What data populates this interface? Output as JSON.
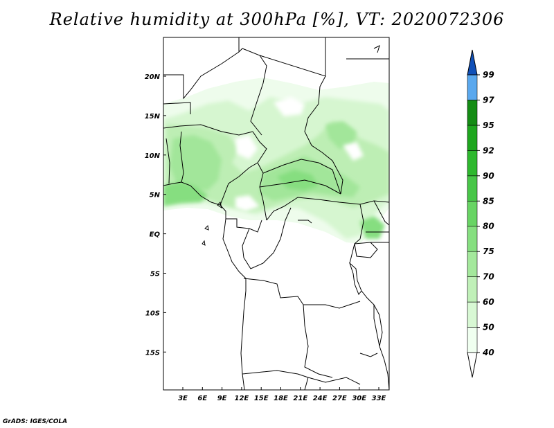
{
  "title": "Relative humidity at 300hPa [%], VT: 2020072306",
  "credit": "GrADS: IGES/COLA",
  "map": {
    "lat_labels": [
      "20N",
      "15N",
      "10N",
      "5N",
      "EQ",
      "5S",
      "10S",
      "15S"
    ],
    "lon_labels": [
      "3E",
      "6E",
      "9E",
      "12E",
      "15E",
      "18E",
      "21E",
      "24E",
      "27E",
      "30E",
      "33E"
    ],
    "colors": {
      "land_outline": "#000000",
      "ocean": "#ffffff"
    }
  },
  "colorbar": {
    "levels": [
      "40",
      "50",
      "60",
      "70",
      "75",
      "80",
      "85",
      "90",
      "92",
      "95",
      "97",
      "99"
    ],
    "colors": [
      "#f0fff0",
      "#d8f8d4",
      "#c0f0b8",
      "#a4e89c",
      "#86df80",
      "#68d464",
      "#48c648",
      "#2eb82e",
      "#1ea61e",
      "#148c14",
      "#5aa8ee",
      "#2e78dc",
      "#1050b8"
    ]
  }
}
